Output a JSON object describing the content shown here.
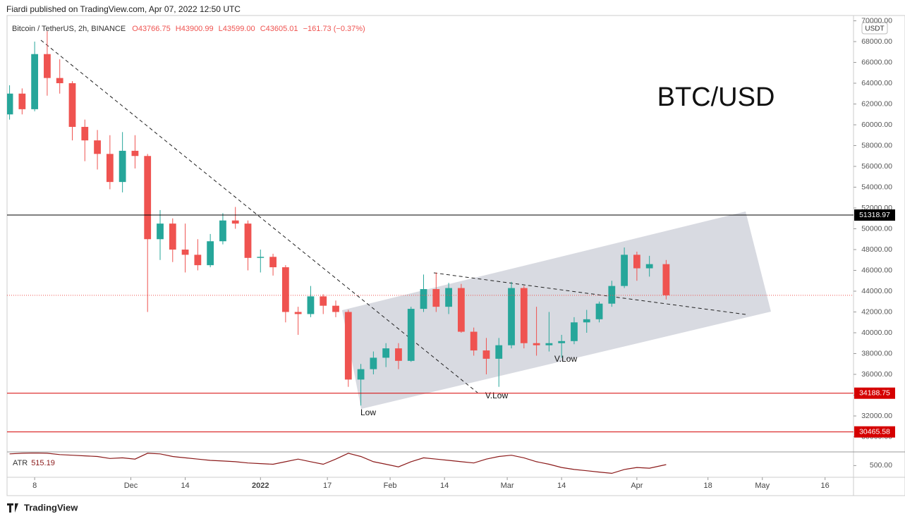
{
  "header": "Fiardi published on TradingView.com, Apr 07, 2022 12:50 UTC",
  "footer": "TradingView",
  "chart_data": {
    "type": "candlestick",
    "title": "BTC/USD",
    "symbol": "Bitcoin / TetherUS, 2h, BINANCE",
    "ohlc_labels": [
      "O43766.75",
      "H43900.99",
      "L43599.00",
      "C43605.01",
      "−161.73 (−0.37%)"
    ],
    "currency": "USDT",
    "up_color": "#26a69a",
    "down_color": "#ef5350",
    "x": [
      -6,
      -3,
      0,
      3,
      6,
      9,
      12,
      15,
      18,
      21,
      24,
      27,
      30,
      33,
      36,
      39,
      42,
      45,
      48,
      51,
      54,
      57,
      60,
      63,
      66,
      69,
      72,
      75,
      78,
      81,
      84,
      87,
      90,
      93,
      96,
      99,
      102,
      105,
      108,
      111,
      114,
      117,
      120,
      123,
      126,
      129,
      132,
      135,
      138,
      141,
      144,
      147,
      151
    ],
    "open": [
      61000,
      63000,
      61500,
      66800,
      64500,
      64000,
      59800,
      58500,
      57200,
      54500,
      57500,
      57000,
      49000,
      50500,
      48000,
      47500,
      46500,
      48800,
      50800,
      50500,
      47200,
      47300,
      46300,
      42000,
      41800,
      43500,
      42600,
      42000,
      35500,
      36500,
      37600,
      38500,
      37300,
      42300,
      44200,
      42500,
      44300,
      40100,
      38300,
      37500,
      38800,
      44300,
      39000,
      38800,
      39000,
      39200,
      41000,
      41300,
      42800,
      44500,
      47500,
      46200,
      46600
    ],
    "high": [
      63800,
      63500,
      68000,
      69000,
      66300,
      64200,
      60500,
      59500,
      59000,
      59300,
      59000,
      57200,
      51800,
      51000,
      50500,
      49000,
      49500,
      51500,
      52100,
      50800,
      48000,
      47600,
      46500,
      42500,
      44500,
      43700,
      43100,
      42200,
      37000,
      38200,
      39000,
      39000,
      42500,
      45600,
      45800,
      44800,
      44700,
      40500,
      39500,
      39500,
      44900,
      44500,
      42500,
      42000,
      39800,
      41500,
      42200,
      43000,
      45000,
      48200,
      47800,
      47400,
      47000
    ],
    "low": [
      60500,
      61000,
      61300,
      62800,
      63000,
      58500,
      56500,
      55700,
      53800,
      53500,
      55800,
      42000,
      47000,
      46800,
      45800,
      46000,
      46300,
      48500,
      50000,
      46000,
      45800,
      45500,
      41000,
      39800,
      41500,
      41800,
      41500,
      34800,
      33000,
      36000,
      36700,
      36500,
      37200,
      42000,
      42000,
      41800,
      40000,
      37800,
      36000,
      34800,
      38500,
      38500,
      37800,
      38200,
      37600,
      38900,
      40000,
      41000,
      42500,
      44300,
      45000,
      45400,
      43200
    ],
    "close": [
      63000,
      61500,
      66800,
      64500,
      64000,
      59800,
      58500,
      57200,
      54500,
      57500,
      57000,
      49000,
      50500,
      48000,
      47500,
      46500,
      48800,
      50800,
      50500,
      47200,
      47300,
      46300,
      42000,
      41800,
      43500,
      42600,
      42000,
      35500,
      36500,
      37600,
      38500,
      37300,
      42300,
      44200,
      42500,
      44300,
      40100,
      38300,
      37500,
      38800,
      44300,
      39000,
      38800,
      39000,
      39200,
      41000,
      41300,
      42800,
      44500,
      47500,
      46200,
      46600,
      43605.01
    ],
    "xlim": [
      -6.6,
      195.8
    ],
    "xticks": [
      {
        "value": 0,
        "label": "8"
      },
      {
        "value": 23,
        "label": "Dec"
      },
      {
        "value": 36,
        "label": "14"
      },
      {
        "value": 54,
        "label": "2022"
      },
      {
        "value": 70,
        "label": "17"
      },
      {
        "value": 85,
        "label": "Feb"
      },
      {
        "value": 98,
        "label": "14"
      },
      {
        "value": 113,
        "label": "Mar"
      },
      {
        "value": 126,
        "label": "14"
      },
      {
        "value": 144,
        "label": "Apr"
      },
      {
        "value": 161,
        "label": "18"
      },
      {
        "value": 174,
        "label": "May"
      },
      {
        "value": 189,
        "label": "16"
      }
    ],
    "ylim": [
      28610,
      70510
    ],
    "yticks": [
      {
        "value": 30000,
        "label": "30000.00"
      },
      {
        "value": 32000,
        "label": "32000.00"
      },
      {
        "value": 34000,
        "label": "34000.00"
      },
      {
        "value": 36000,
        "label": "36000.00"
      },
      {
        "value": 38000,
        "label": "38000.00"
      },
      {
        "value": 40000,
        "label": "40000.00"
      },
      {
        "value": 42000,
        "label": "42000.00"
      },
      {
        "value": 44000,
        "label": "44000.00"
      },
      {
        "value": 46000,
        "label": "46000.00"
      },
      {
        "value": 48000,
        "label": "48000.00"
      },
      {
        "value": 50000,
        "label": "50000.00"
      },
      {
        "value": 52000,
        "label": "52000.00"
      },
      {
        "value": 54000,
        "label": "54000.00"
      },
      {
        "value": 56000,
        "label": "56000.00"
      },
      {
        "value": 58000,
        "label": "58000.00"
      },
      {
        "value": 60000,
        "label": "60000.00"
      },
      {
        "value": 62000,
        "label": "62000.00"
      },
      {
        "value": 64000,
        "label": "64000.00"
      },
      {
        "value": 66000,
        "label": "66000.00"
      },
      {
        "value": 68000,
        "label": "68000.00"
      },
      {
        "value": 70000,
        "label": "70000.00"
      }
    ],
    "hlines": [
      {
        "value": 51318.97,
        "color": "#000000"
      },
      {
        "value": 34188.75,
        "color": "#d50000"
      },
      {
        "value": 30465.58,
        "color": "#d50000"
      }
    ],
    "annotations": [
      "Low",
      "V.Low",
      "V.Low"
    ],
    "atr": {
      "name": "ATR",
      "color": "#8b1a1a",
      "values": [
        680,
        690,
        695,
        690,
        670,
        660,
        650,
        640,
        610,
        620,
        600,
        690,
        680,
        640,
        620,
        600,
        580,
        570,
        560,
        540,
        530,
        520,
        560,
        600,
        560,
        520,
        600,
        690,
        640,
        560,
        520,
        480,
        560,
        620,
        600,
        580,
        560,
        540,
        600,
        640,
        660,
        620,
        560,
        520,
        470,
        440,
        420,
        400,
        380,
        440,
        470,
        460,
        515.19
      ],
      "ylim": [
        330,
        700
      ],
      "yticks": [
        {
          "value": 500,
          "label": "500.00"
        }
      ]
    }
  }
}
